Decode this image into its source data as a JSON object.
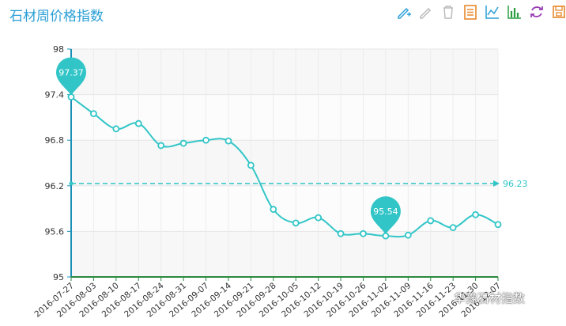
{
  "title": "石材周价格指数",
  "toolbar": {
    "icons": [
      "pencil-plus-icon",
      "pencil-icon",
      "trash-icon",
      "data-view-icon",
      "line-chart-icon",
      "bar-chart-icon",
      "refresh-icon",
      "save-icon"
    ]
  },
  "colors": {
    "line": "#32c5c7",
    "title": "#2a9fd6",
    "xaxis": "#2a8a3e",
    "yaxis": "#1a8fb8",
    "markline": "#32c5c7"
  },
  "watermark": "华豫石材指数",
  "chart_data": {
    "type": "line",
    "x": [
      "2016-07-27",
      "2016-08-03",
      "2016-08-10",
      "2016-08-17",
      "2016-08-24",
      "2016-08-31",
      "2016-09-07",
      "2016-09-14",
      "2016-09-21",
      "2016-09-28",
      "2016-10-05",
      "2016-10-12",
      "2016-10-19",
      "2016-10-26",
      "2016-11-02",
      "2016-11-09",
      "2016-11-16",
      "2016-11-23",
      "2016-11-30",
      "2016-12-07"
    ],
    "values": [
      97.37,
      97.15,
      96.95,
      97.02,
      96.73,
      96.76,
      96.8,
      96.79,
      96.47,
      95.89,
      95.71,
      95.78,
      95.57,
      95.57,
      95.54,
      95.55,
      95.74,
      95.65,
      95.82,
      95.69
    ],
    "ylim": [
      95,
      98
    ],
    "yticks": [
      "95",
      "95.6",
      "96.2",
      "96.8",
      "97.4",
      "98"
    ],
    "yticks_values": [
      95,
      95.6,
      96.2,
      96.8,
      97.4,
      98
    ],
    "markpoints": [
      {
        "label": "97.37",
        "index": 0
      },
      {
        "label": "95.54",
        "index": 14
      }
    ],
    "markline": {
      "value": 96.23,
      "label": "96.23"
    },
    "grid": true
  }
}
